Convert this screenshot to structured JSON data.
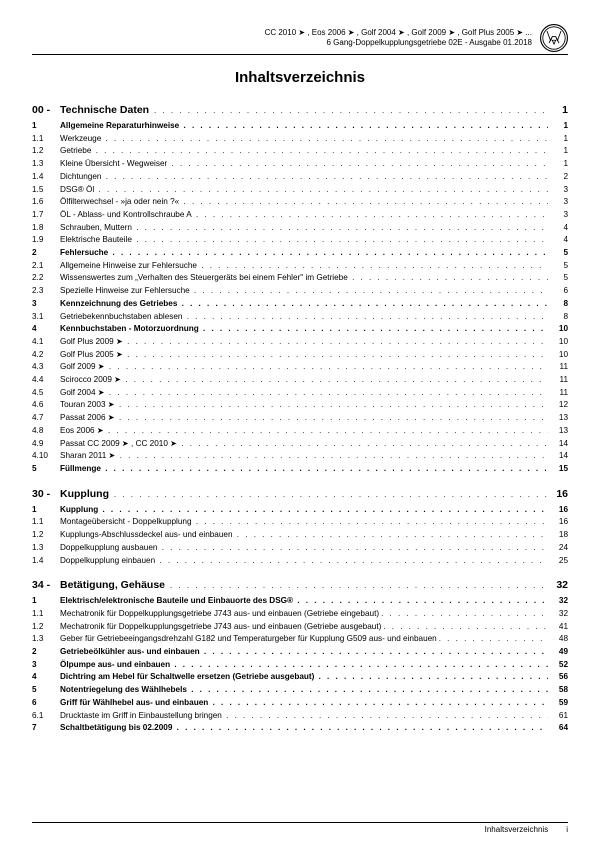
{
  "header": {
    "line1": "CC 2010 ➤ , Eos 2006 ➤ , Golf 2004 ➤ , Golf 2009 ➤ , Golf Plus 2005 ➤ ...",
    "line2": "6 Gang-Doppelkupplungsgetriebe 02E - Ausgabe 01.2018"
  },
  "title": "Inhaltsverzeichnis",
  "footer": {
    "label": "Inhaltsverzeichnis",
    "page": "i"
  },
  "sections": [
    {
      "num": "00 -",
      "label": "Technische Daten",
      "page": "1",
      "rows": [
        {
          "n": "1",
          "l": "Allgemeine Reparaturhinweise",
          "p": "1",
          "b": true
        },
        {
          "n": "1.1",
          "l": "Werkzeuge",
          "p": "1"
        },
        {
          "n": "1.2",
          "l": "Getriebe",
          "p": "1"
        },
        {
          "n": "1.3",
          "l": "Kleine Übersicht - Wegweiser",
          "p": "1"
        },
        {
          "n": "1.4",
          "l": "Dichtungen",
          "p": "2"
        },
        {
          "n": "1.5",
          "l": "DSG® Öl",
          "p": "3"
        },
        {
          "n": "1.6",
          "l": "Ölfilterwechsel - »ja oder nein ?«",
          "p": "3"
        },
        {
          "n": "1.7",
          "l": "ÖL - Ablass- und Kontrollschraube A",
          "p": "3"
        },
        {
          "n": "1.8",
          "l": "Schrauben, Muttern",
          "p": "4"
        },
        {
          "n": "1.9",
          "l": "Elektrische Bauteile",
          "p": "4"
        },
        {
          "n": "2",
          "l": "Fehlersuche",
          "p": "5",
          "b": true
        },
        {
          "n": "2.1",
          "l": "Allgemeine Hinweise zur Fehlersuche",
          "p": "5"
        },
        {
          "n": "2.2",
          "l": "Wissenswertes zum „Verhalten des Steuergeräts bei einem Fehler\" im Getriebe",
          "p": "5"
        },
        {
          "n": "2.3",
          "l": "Spezielle Hinweise zur Fehlersuche",
          "p": "6"
        },
        {
          "n": "3",
          "l": "Kennzeichnung des Getriebes",
          "p": "8",
          "b": true
        },
        {
          "n": "3.1",
          "l": "Getriebekennbuchstaben ablesen",
          "p": "8"
        },
        {
          "n": "4",
          "l": "Kennbuchstaben - Motorzuordnung",
          "p": "10",
          "b": true
        },
        {
          "n": "4.1",
          "l": "Golf Plus 2009 ➤",
          "p": "10"
        },
        {
          "n": "4.2",
          "l": "Golf Plus 2005 ➤",
          "p": "10"
        },
        {
          "n": "4.3",
          "l": "Golf 2009 ➤",
          "p": "11"
        },
        {
          "n": "4.4",
          "l": "Scirocco 2009 ➤",
          "p": "11"
        },
        {
          "n": "4.5",
          "l": "Golf 2004 ➤",
          "p": "11"
        },
        {
          "n": "4.6",
          "l": "Touran 2003 ➤",
          "p": "12"
        },
        {
          "n": "4.7",
          "l": "Passat 2006 ➤",
          "p": "13"
        },
        {
          "n": "4.8",
          "l": "Eos 2006 ➤",
          "p": "13"
        },
        {
          "n": "4.9",
          "l": "Passat CC 2009 ➤ , CC 2010 ➤",
          "p": "14"
        },
        {
          "n": "4.10",
          "l": "Sharan 2011 ➤",
          "p": "14"
        },
        {
          "n": "5",
          "l": "Füllmenge",
          "p": "15",
          "b": true
        }
      ]
    },
    {
      "num": "30 -",
      "label": "Kupplung",
      "page": "16",
      "rows": [
        {
          "n": "1",
          "l": "Kupplung",
          "p": "16",
          "b": true
        },
        {
          "n": "1.1",
          "l": "Montageübersicht - Doppelkupplung",
          "p": "16"
        },
        {
          "n": "1.2",
          "l": "Kupplungs-Abschlussdeckel aus- und einbauen",
          "p": "18"
        },
        {
          "n": "1.3",
          "l": "Doppelkupplung ausbauen",
          "p": "24"
        },
        {
          "n": "1.4",
          "l": "Doppelkupplung einbauen",
          "p": "25"
        }
      ]
    },
    {
      "num": "34 -",
      "label": "Betätigung, Gehäuse",
      "page": "32",
      "rows": [
        {
          "n": "1",
          "l": "Elektrisch/elektronische Bauteile und Einbauorte des DSG®",
          "p": "32",
          "b": true
        },
        {
          "n": "1.1",
          "l": "Mechatronik für Doppelkupplungsgetriebe J743 aus- und einbauen (Getriebe eingebaut)",
          "p": "32",
          "wrap": true
        },
        {
          "n": "1.2",
          "l": "Mechatronik für Doppelkupplungsgetriebe J743 aus- und einbauen (Getriebe ausgebaut)",
          "p": "41",
          "wrap": true
        },
        {
          "n": "1.3",
          "l": "Geber für Getriebeeingangsdrehzahl G182 und Temperaturgeber für Kupplung G509 aus- und einbauen",
          "p": "48",
          "wrap": true
        },
        {
          "n": "2",
          "l": "Getriebeölkühler aus- und einbauen",
          "p": "49",
          "b": true
        },
        {
          "n": "3",
          "l": "Ölpumpe aus- und einbauen",
          "p": "52",
          "b": true
        },
        {
          "n": "4",
          "l": "Dichtring am Hebel für Schaltwelle ersetzen (Getriebe ausgebaut)",
          "p": "56",
          "b": true
        },
        {
          "n": "5",
          "l": "Notentriegelung des Wählhebels",
          "p": "58",
          "b": true
        },
        {
          "n": "6",
          "l": "Griff für Wählhebel aus- und einbauen",
          "p": "59",
          "b": true
        },
        {
          "n": "6.1",
          "l": "Drucktaste im Griff in Einbaustellung bringen",
          "p": "61"
        },
        {
          "n": "7",
          "l": "Schaltbetätigung bis 02.2009",
          "p": "64",
          "b": true
        }
      ]
    }
  ]
}
